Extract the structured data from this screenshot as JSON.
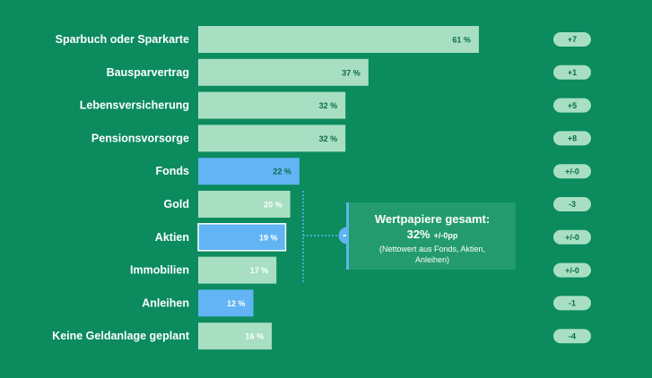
{
  "chart_data": {
    "type": "bar",
    "orientation": "horizontal",
    "categories": [
      "Sparbuch oder Sparkarte",
      "Bausparvertrag",
      "Lebensversicherung",
      "Pensionsvorsorge",
      "Fonds",
      "Gold",
      "Aktien",
      "Immobilien",
      "Anleihen",
      "Keine Geldanlage geplant"
    ],
    "values": [
      61,
      37,
      32,
      32,
      22,
      20,
      19,
      17,
      12,
      16
    ],
    "value_labels": [
      "61 %",
      "37 %",
      "32 %",
      "32 %",
      "22 %",
      "20 %",
      "19 %",
      "17 %",
      "12 %",
      "16 %"
    ],
    "changes": [
      "+7",
      "+1",
      "+5",
      "+8",
      "+/-0",
      "-3",
      "+/-0",
      "+/-0",
      "-1",
      "-4"
    ],
    "highlighted": [
      "Fonds",
      "Aktien",
      "Anleihen"
    ],
    "xlim": [
      0,
      100
    ],
    "grid": false,
    "colors": {
      "background": "#0b8b5e",
      "bar": "#a8dfc3",
      "bar_highlight": "#62b4f4",
      "value_text_default": "#0b6b48",
      "value_text_light": "#ffffff",
      "change_pill": "#a8dfc3",
      "callout_bg": "#239b6e",
      "connector": "#62b4f4"
    },
    "callout": {
      "title": "Wertpapiere gesamt:",
      "value": "32%",
      "delta": "+/-0pp",
      "note": "(Nettowert aus Fonds, Aktien, Anleihen)"
    }
  }
}
